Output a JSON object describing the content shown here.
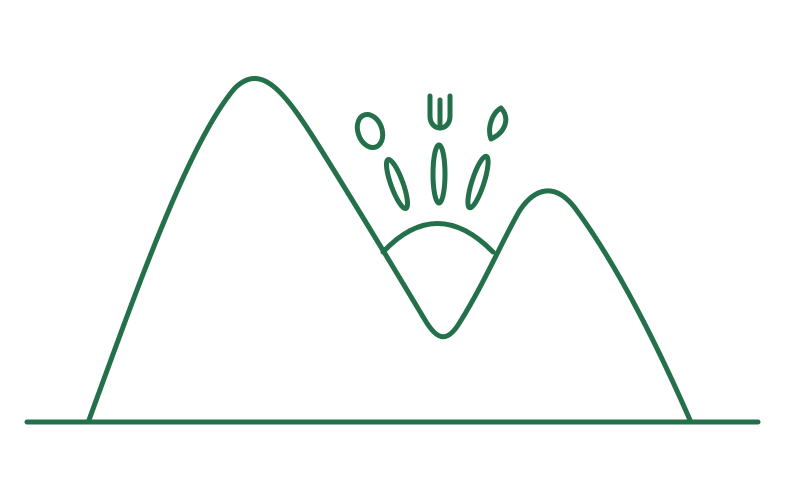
{
  "illustration": {
    "subject": "mountain-sunrise",
    "colors": {
      "stroke": "#23704a",
      "background": "#ffffff"
    }
  }
}
